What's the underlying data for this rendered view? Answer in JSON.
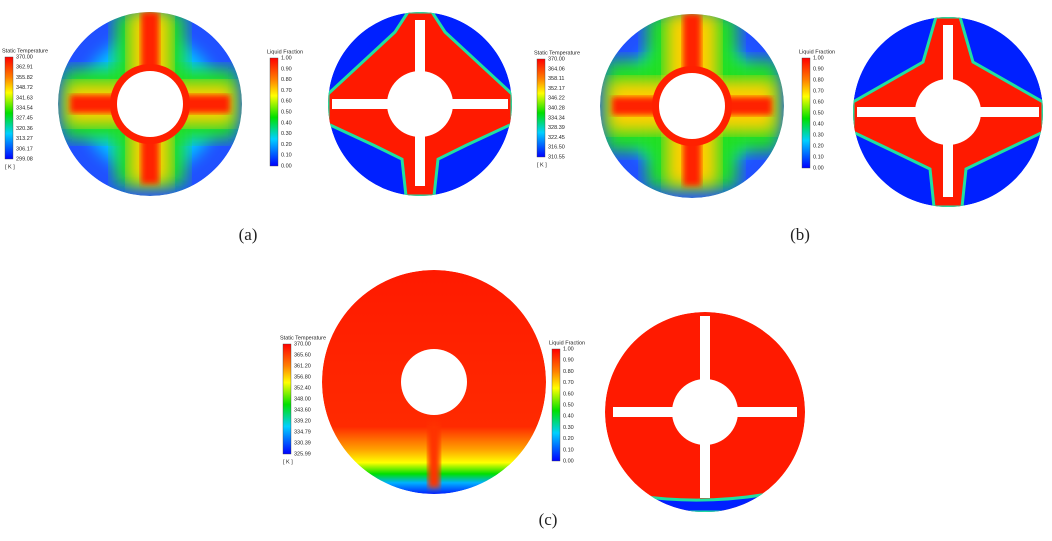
{
  "panels": [
    {
      "caption": "(a)",
      "temperature_legend": {
        "title": "Static Temperature",
        "labels": [
          "370.00",
          "362.91",
          "355.82",
          "348.72",
          "341.63",
          "334.54",
          "327.45",
          "320.36",
          "313.27",
          "306.17",
          "299.08"
        ],
        "unit": "[ K ]"
      },
      "fraction_legend": {
        "title": "Liquid Fraction",
        "labels": [
          "1.00",
          "0.90",
          "0.80",
          "0.70",
          "0.60",
          "0.50",
          "0.40",
          "0.30",
          "0.20",
          "0.10",
          "0.00"
        ]
      }
    },
    {
      "caption": "(b)",
      "temperature_legend": {
        "title": "Static Temperature",
        "labels": [
          "370.00",
          "364.06",
          "358.11",
          "352.17",
          "346.22",
          "340.28",
          "334.34",
          "328.39",
          "322.45",
          "316.50",
          "310.55"
        ],
        "unit": "[ K ]"
      },
      "fraction_legend": {
        "title": "Liquid Fraction",
        "labels": [
          "1.00",
          "0.90",
          "0.80",
          "0.70",
          "0.60",
          "0.50",
          "0.40",
          "0.30",
          "0.20",
          "0.10",
          "0.00"
        ]
      }
    },
    {
      "caption": "(c)",
      "temperature_legend": {
        "title": "Static Temperature",
        "labels": [
          "370.00",
          "365.60",
          "361.20",
          "356.80",
          "352.40",
          "348.00",
          "343.60",
          "339.20",
          "334.79",
          "330.39",
          "325.99"
        ],
        "unit": "[ K ]"
      },
      "fraction_legend": {
        "title": "Liquid Fraction",
        "labels": [
          "1.00",
          "0.90",
          "0.80",
          "0.70",
          "0.60",
          "0.50",
          "0.40",
          "0.30",
          "0.20",
          "0.10",
          "0.00"
        ]
      }
    }
  ]
}
